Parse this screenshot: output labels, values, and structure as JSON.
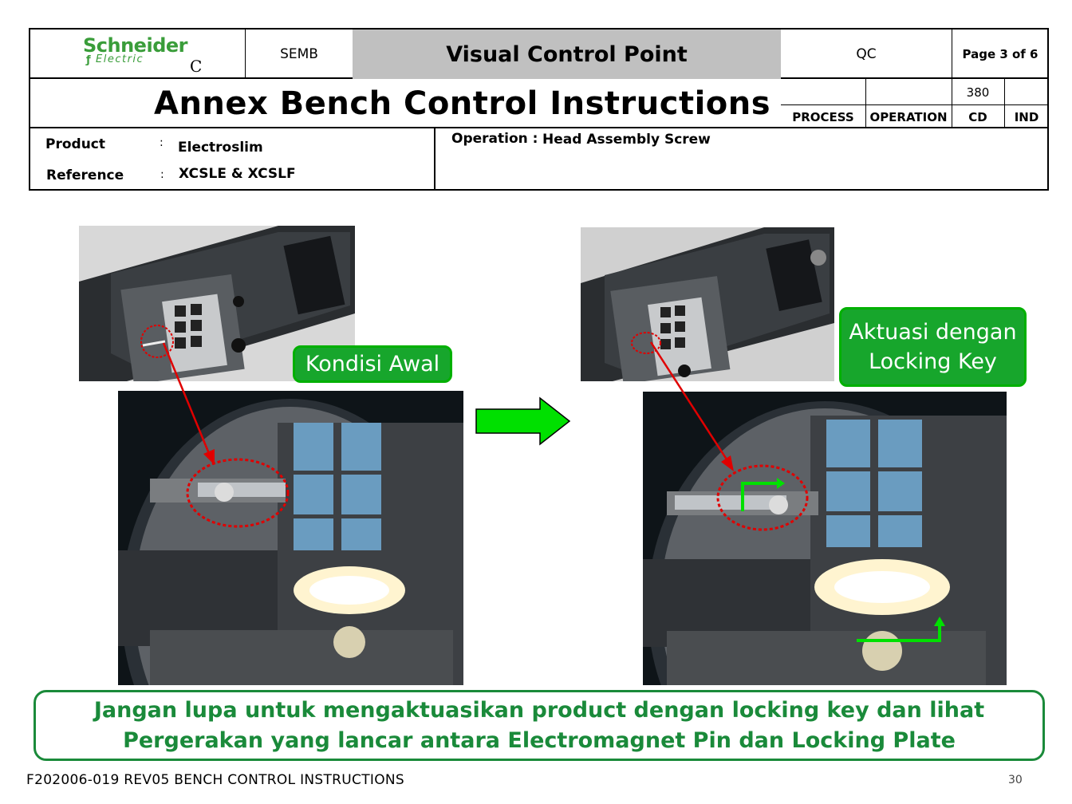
{
  "header": {
    "logo_name": "Schneider",
    "logo_sub": "Electric",
    "logo_revision": "C",
    "dept": "SEMB",
    "title": "Visual Control Point",
    "qc": "QC",
    "page": "Page 3 of 6",
    "subtitle": "Annex Bench Control Instructions",
    "operation_number": "380",
    "labels": {
      "process": "PROCESS",
      "operation": "OPERATION",
      "cd": "CD",
      "ind": "IND"
    }
  },
  "info": {
    "product_label": "Product",
    "product_value": "Electroslim",
    "reference_label": "Reference",
    "reference_value": "XCSLE & XCSLF",
    "colon": ":",
    "operation_label": "Operation :",
    "operation_value": "Head Assembly Screw"
  },
  "callouts": {
    "left": "Kondisi Awal",
    "right_line1": "Aktuasi dengan",
    "right_line2": "Locking Key"
  },
  "banner": {
    "line1": "Jangan lupa untuk mengaktuasikan product dengan locking key dan lihat",
    "line2": "Pergerakan yang lancar antara Electromagnet Pin dan Locking Plate"
  },
  "footer": {
    "doc_ref": "F202006-019 REV05 BENCH CONTROL INSTRUCTIONS",
    "page_number": "30"
  },
  "colors": {
    "callout_fill": "#17a62c",
    "callout_border": "#00b000",
    "banner_text": "#1a8a3a",
    "arrow_green": "#00e000",
    "annotation_red": "#e00000",
    "title_bar": "#c0c0c0"
  }
}
